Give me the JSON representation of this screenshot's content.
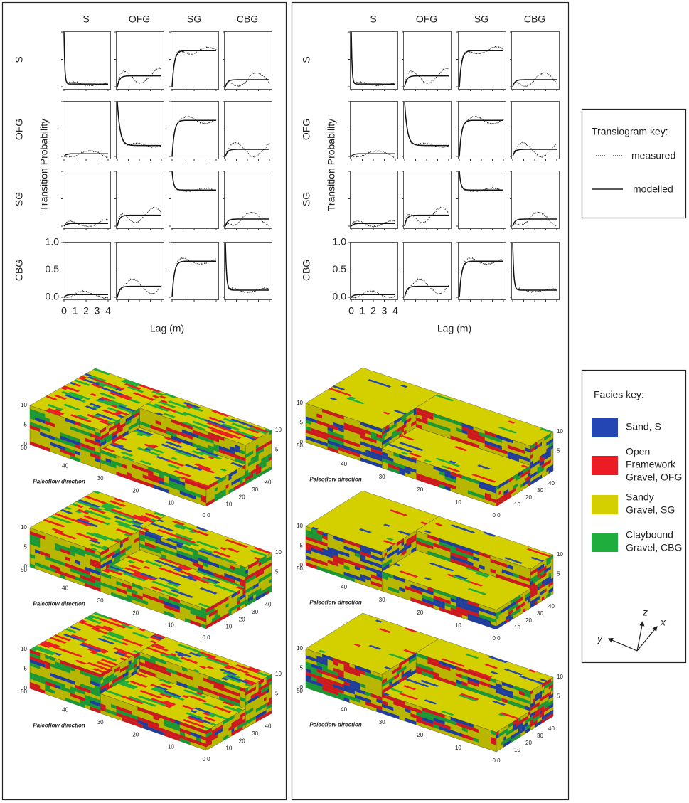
{
  "panels": [
    {
      "transiogram": {
        "column_labels": [
          "S",
          "OFG",
          "SG",
          "CBG"
        ],
        "row_labels": [
          "S",
          "OFG",
          "SG",
          "CBG"
        ],
        "y_axis_label": "Transition Probability",
        "x_axis_label": "Lag (m)",
        "xlim": [
          0,
          4
        ],
        "ylim": [
          0,
          1
        ],
        "xticks": [
          0,
          1,
          2,
          3,
          4
        ],
        "yticks": [
          {
            "value": 1,
            "label": "1.0"
          },
          {
            "value": 0.5,
            "label": "0.5"
          },
          {
            "value": 0,
            "label": "0.0"
          }
        ],
        "modelled_sill": [
          0.05,
          0.2,
          0.66,
          0.13
        ]
      },
      "blocks": [
        {
          "direction_label": "Paleoflow direction"
        },
        {
          "direction_label": "Paleoflow direction"
        },
        {
          "direction_label": "Paleoflow direction"
        }
      ]
    },
    {
      "transiogram": {
        "column_labels": [
          "S",
          "OFG",
          "SG",
          "CBG"
        ],
        "row_labels": [
          "S",
          "OFG",
          "SG",
          "CBG"
        ],
        "y_axis_label": "Transition Probability",
        "x_axis_label": "Lag (m)",
        "xlim": [
          0,
          4
        ],
        "ylim": [
          0,
          1
        ],
        "xticks": [
          0,
          1,
          2,
          3,
          4
        ],
        "yticks": [
          {
            "value": 1,
            "label": "1.0"
          },
          {
            "value": 0.5,
            "label": "0.5"
          },
          {
            "value": 0,
            "label": "0.0"
          }
        ],
        "modelled_sill": [
          0.05,
          0.2,
          0.66,
          0.13
        ]
      },
      "blocks": [
        {
          "direction_label": "Paleoflow direction"
        },
        {
          "direction_label": "Paleoflow direction"
        },
        {
          "direction_label": "Paleoflow direction"
        }
      ]
    }
  ],
  "block_axis_labels": {
    "height": [
      "10",
      "5",
      "0"
    ],
    "length": [
      "50",
      "40",
      "30",
      "20",
      "10",
      "0 0"
    ],
    "width": [
      "40",
      "30",
      "20",
      "10"
    ]
  },
  "transiogram_key": {
    "title": "Transiogram key:",
    "measured": "measured",
    "modelled": "modelled"
  },
  "facies_key": {
    "title": "Facies key:",
    "items": [
      {
        "lines": [
          "Sand, S"
        ],
        "color": "#2446b4"
      },
      {
        "lines": [
          "Open",
          "Framework",
          "Gravel, OFG"
        ],
        "color": "#ec1c24"
      },
      {
        "lines": [
          "Sandy",
          "Gravel, SG"
        ],
        "color": "#d4d000"
      },
      {
        "lines": [
          "Claybound",
          "Gravel, CBG"
        ],
        "color": "#1fae3e"
      }
    ]
  },
  "axes_icon": {
    "z": "z",
    "x": "x",
    "y": "y"
  }
}
